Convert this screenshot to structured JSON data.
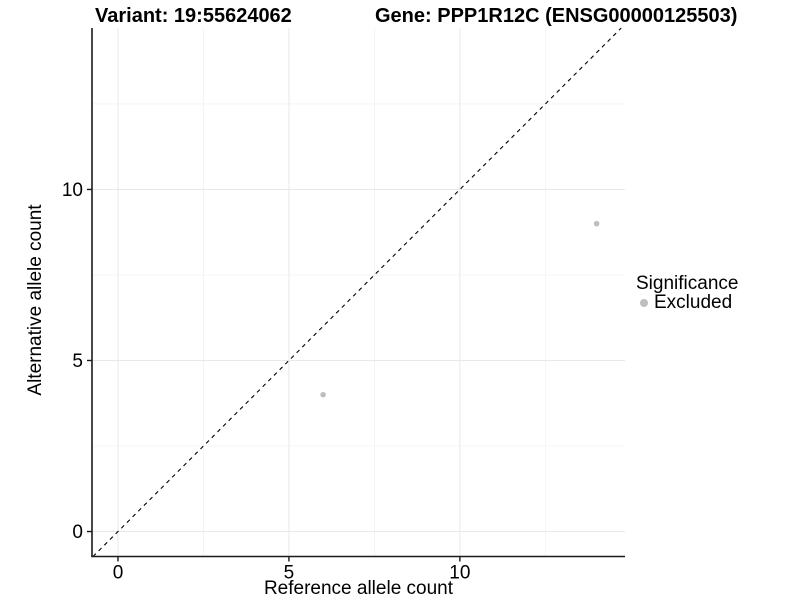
{
  "chart_data": {
    "type": "scatter",
    "title_left": "Variant: 19:55624062",
    "title_right": "Gene: PPP1R12C (ENSG00000125503)",
    "xlabel": "Reference allele count",
    "ylabel": "Alternative allele count",
    "xlim": [
      -0.76,
      14.83
    ],
    "ylim": [
      -0.73,
      14.72
    ],
    "x_ticks": [
      0,
      5,
      10
    ],
    "y_ticks": [
      0,
      5,
      10
    ],
    "minor_grid_step": 2.5,
    "grid": true,
    "identity_line": {
      "style": "dashed",
      "color": "#000000",
      "equation": "y = x"
    },
    "series": [
      {
        "name": "Excluded",
        "color": "#bebebe",
        "points": [
          {
            "x": 6,
            "y": 4
          },
          {
            "x": 14,
            "y": 9
          }
        ]
      }
    ],
    "legend": {
      "title": "Significance",
      "position": "right",
      "items": [
        {
          "label": "Excluded",
          "color": "#bebebe"
        }
      ]
    }
  },
  "colors": {
    "background": "#ffffff",
    "text": "#000000",
    "axis": "#1a1a1a",
    "grid_major": "#e8e8e8",
    "grid_minor": "#f2f2f2",
    "point": "#bebebe"
  }
}
